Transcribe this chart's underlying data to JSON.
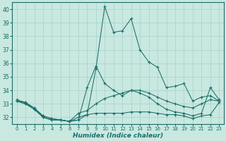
{
  "xlabel": "Humidex (Indice chaleur)",
  "background_color": "#c8e8e0",
  "grid_color": "#a8d0cc",
  "line_color": "#1a6e68",
  "xlim": [
    -0.5,
    23.5
  ],
  "ylim": [
    31.5,
    40.5
  ],
  "yticks": [
    32,
    33,
    34,
    35,
    36,
    37,
    38,
    39,
    40
  ],
  "xticks": [
    0,
    1,
    2,
    3,
    4,
    5,
    6,
    7,
    8,
    9,
    10,
    11,
    12,
    13,
    14,
    15,
    16,
    17,
    18,
    19,
    20,
    21,
    22,
    23
  ],
  "lines": [
    {
      "x": [
        0,
        1,
        2,
        3,
        4,
        5,
        6,
        7,
        8,
        9,
        10,
        11,
        12,
        13,
        14,
        15,
        16,
        17,
        18,
        19,
        20,
        21,
        22,
        23
      ],
      "y": [
        33.3,
        33.1,
        32.7,
        32.1,
        31.9,
        31.8,
        31.7,
        31.8,
        32.2,
        35.6,
        40.2,
        38.3,
        38.4,
        39.3,
        37.0,
        36.1,
        35.7,
        34.2,
        34.3,
        34.5,
        33.2,
        33.5,
        33.6,
        33.2
      ]
    },
    {
      "x": [
        0,
        1,
        2,
        3,
        4,
        5,
        6,
        7,
        8,
        9,
        10,
        11,
        12,
        13,
        14,
        15,
        16,
        17,
        18,
        19,
        20,
        21,
        22,
        23
      ],
      "y": [
        33.2,
        33.1,
        32.6,
        32.0,
        31.8,
        31.8,
        31.7,
        31.8,
        34.2,
        35.8,
        34.5,
        34.0,
        33.6,
        34.0,
        33.8,
        33.5,
        33.0,
        32.6,
        32.4,
        32.3,
        32.1,
        32.3,
        34.2,
        33.3
      ]
    },
    {
      "x": [
        0,
        1,
        2,
        3,
        4,
        5,
        6,
        7,
        8,
        9,
        10,
        11,
        12,
        13,
        14,
        15,
        16,
        17,
        18,
        19,
        20,
        21,
        22,
        23
      ],
      "y": [
        33.2,
        33.0,
        32.6,
        32.1,
        31.9,
        31.8,
        31.7,
        32.3,
        32.5,
        33.0,
        33.4,
        33.6,
        33.8,
        34.0,
        34.0,
        33.8,
        33.5,
        33.2,
        33.0,
        32.8,
        32.7,
        33.0,
        33.3,
        33.2
      ]
    },
    {
      "x": [
        0,
        1,
        2,
        3,
        4,
        5,
        6,
        7,
        8,
        9,
        10,
        11,
        12,
        13,
        14,
        15,
        16,
        17,
        18,
        19,
        20,
        21,
        22,
        23
      ],
      "y": [
        33.2,
        33.0,
        32.6,
        32.0,
        31.8,
        31.8,
        31.7,
        32.0,
        32.2,
        32.3,
        32.3,
        32.3,
        32.3,
        32.4,
        32.4,
        32.4,
        32.3,
        32.2,
        32.2,
        32.1,
        31.9,
        32.1,
        32.2,
        33.1
      ]
    }
  ]
}
